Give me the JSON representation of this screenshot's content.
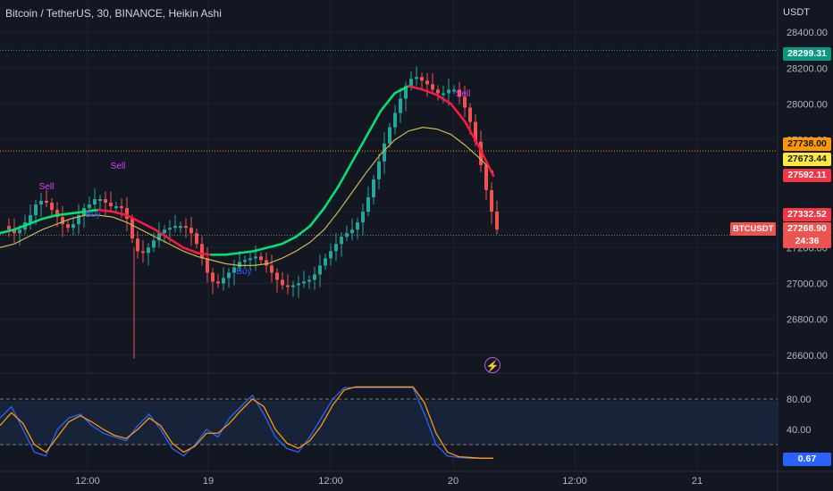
{
  "header": {
    "title": "Bitcoin / TetherUS, 30, BINANCE, Heikin Ashi",
    "currency": "USDT"
  },
  "price_tags": [
    {
      "label": "28299.31",
      "bg": "#089981",
      "fg": "#ffffff",
      "value": 28299.31
    },
    {
      "label": "27738.00",
      "bg": "#ff9800",
      "fg": "#131722",
      "value": 27738.0
    },
    {
      "label": "27673.44",
      "bg": "#ffeb3b",
      "fg": "#131722",
      "value": 27673.44
    },
    {
      "label": "27592.11",
      "bg": "#f23645",
      "fg": "#ffffff",
      "value": 27592.11
    },
    {
      "label": "27332.52",
      "bg": "#f23645",
      "fg": "#ffffff",
      "value": 27332.52
    },
    {
      "label": "27268.90",
      "bg": "#ef5350",
      "fg": "#ffffff",
      "value": 27268.9
    },
    {
      "label": "24:36",
      "bg": "#ef5350",
      "fg": "#ffffff",
      "value": 27268.9
    }
  ],
  "ticker_tag": "BTCUSDT",
  "osc_value_tag": {
    "label": "0.67",
    "bg": "#2962ff",
    "fg": "#ffffff"
  },
  "chart_data": [
    {
      "type": "candlestick",
      "title": "Bitcoin / TetherUS, 30, BINANCE, Heikin Ashi",
      "y_ticks": [
        "28400.00",
        "28200.00",
        "28000.00",
        "27800.00",
        "27400.00",
        "27200.00",
        "27000.00",
        "26800.00",
        "26600.00"
      ],
      "x_ticks": [
        "12:00",
        "19",
        "12:00",
        "20",
        "12:00",
        "21"
      ],
      "ylim": [
        26500,
        28480
      ],
      "horizontal_levels": [
        28299.31,
        27738.0,
        27268.9
      ],
      "colors": {
        "up": "#26a69a",
        "down": "#ef5350"
      },
      "signals": [
        {
          "label": "Sell",
          "color": "#e040fb",
          "kind": "sell"
        },
        {
          "label": "Sell",
          "color": "#e040fb",
          "kind": "sell"
        },
        {
          "label": "Sell",
          "color": "#e040fb",
          "kind": "sell"
        },
        {
          "label": "Buy",
          "color": "#2962ff",
          "kind": "buy"
        },
        {
          "label": "Buy",
          "color": "#2962ff",
          "kind": "buy"
        }
      ],
      "close_path": [
        [
          0,
          27320
        ],
        [
          6,
          27300
        ],
        [
          12,
          27280
        ],
        [
          18,
          27300
        ],
        [
          24,
          27340
        ],
        [
          30,
          27380
        ],
        [
          36,
          27440
        ],
        [
          42,
          27460
        ],
        [
          48,
          27450
        ],
        [
          54,
          27410
        ],
        [
          60,
          27370
        ],
        [
          66,
          27330
        ],
        [
          72,
          27310
        ],
        [
          78,
          27330
        ],
        [
          84,
          27380
        ],
        [
          90,
          27420
        ],
        [
          96,
          27440
        ],
        [
          102,
          27470
        ],
        [
          108,
          27470
        ],
        [
          114,
          27450
        ],
        [
          120,
          27430
        ],
        [
          126,
          27430
        ],
        [
          132,
          27420
        ],
        [
          138,
          27360
        ],
        [
          144,
          27250
        ],
        [
          150,
          27180
        ],
        [
          156,
          27170
        ],
        [
          162,
          27200
        ],
        [
          168,
          27240
        ],
        [
          174,
          27280
        ],
        [
          180,
          27300
        ],
        [
          186,
          27310
        ],
        [
          192,
          27320
        ],
        [
          198,
          27320
        ],
        [
          204,
          27310
        ],
        [
          210,
          27280
        ],
        [
          216,
          27220
        ],
        [
          222,
          27140
        ],
        [
          228,
          27060
        ],
        [
          234,
          27010
        ],
        [
          240,
          27000
        ],
        [
          246,
          27030
        ],
        [
          252,
          27060
        ],
        [
          258,
          27090
        ],
        [
          264,
          27120
        ],
        [
          270,
          27130
        ],
        [
          276,
          27140
        ],
        [
          282,
          27150
        ],
        [
          288,
          27130
        ],
        [
          294,
          27100
        ],
        [
          300,
          27060
        ],
        [
          306,
          27020
        ],
        [
          312,
          26990
        ],
        [
          318,
          26980
        ],
        [
          324,
          26990
        ],
        [
          330,
          27000
        ],
        [
          336,
          27010
        ],
        [
          342,
          27020
        ],
        [
          348,
          27050
        ],
        [
          354,
          27100
        ],
        [
          360,
          27140
        ],
        [
          366,
          27180
        ],
        [
          372,
          27220
        ],
        [
          378,
          27260
        ],
        [
          384,
          27280
        ],
        [
          390,
          27300
        ],
        [
          396,
          27340
        ],
        [
          402,
          27400
        ],
        [
          408,
          27480
        ],
        [
          414,
          27580
        ],
        [
          420,
          27680
        ],
        [
          426,
          27780
        ],
        [
          432,
          27870
        ],
        [
          438,
          27950
        ],
        [
          444,
          28030
        ],
        [
          450,
          28100
        ],
        [
          456,
          28140
        ],
        [
          462,
          28150
        ],
        [
          468,
          28130
        ],
        [
          474,
          28110
        ],
        [
          480,
          28080
        ],
        [
          486,
          28060
        ],
        [
          492,
          28060
        ],
        [
          498,
          28080
        ],
        [
          504,
          28080
        ],
        [
          510,
          28040
        ],
        [
          516,
          27980
        ],
        [
          522,
          27900
        ],
        [
          528,
          27790
        ],
        [
          534,
          27660
        ],
        [
          540,
          27520
        ],
        [
          546,
          27400
        ],
        [
          552,
          27300
        ]
      ],
      "series": [
        {
          "name": "",
          "color_up": "#00e676",
          "color_down": "#ff1744",
          "values": [
            27280,
            27300,
            27330,
            27360,
            27380,
            27390,
            27400,
            27410,
            27400,
            27380,
            27340,
            27300,
            27250,
            27200,
            27170,
            27160,
            27160,
            27170,
            27180,
            27200,
            27220,
            27260,
            27320,
            27420,
            27540,
            27680,
            27820,
            27960,
            28060,
            28100,
            28080,
            28050,
            28000,
            27900,
            27760,
            27600
          ]
        },
        {
          "name": "",
          "color": "#c9b84e",
          "values": [
            27200,
            27220,
            27260,
            27300,
            27330,
            27360,
            27380,
            27380,
            27370,
            27340,
            27300,
            27260,
            27220,
            27180,
            27150,
            27130,
            27110,
            27100,
            27100,
            27110,
            27140,
            27180,
            27230,
            27300,
            27400,
            27510,
            27620,
            27720,
            27800,
            27850,
            27870,
            27860,
            27830,
            27770,
            27700,
            27620
          ]
        }
      ]
    },
    {
      "type": "line",
      "y_ticks": [
        "80.00",
        "40.00"
      ],
      "levels": [
        80,
        20
      ],
      "ylim": [
        0,
        100
      ],
      "series": [
        {
          "name": "",
          "color": "#2962ff",
          "values": [
            55,
            70,
            40,
            10,
            5,
            40,
            55,
            60,
            45,
            35,
            30,
            25,
            45,
            60,
            40,
            15,
            5,
            20,
            40,
            30,
            55,
            70,
            85,
            60,
            30,
            15,
            10,
            30,
            55,
            80,
            95,
            95,
            95,
            95,
            95,
            95,
            95,
            60,
            20,
            5,
            3,
            2,
            2,
            2
          ]
        },
        {
          "name": "",
          "color": "#ff9800",
          "values": [
            45,
            62,
            48,
            20,
            10,
            30,
            50,
            58,
            50,
            40,
            32,
            28,
            40,
            55,
            45,
            22,
            10,
            18,
            35,
            35,
            48,
            65,
            80,
            70,
            40,
            22,
            15,
            25,
            45,
            72,
            92,
            96,
            96,
            96,
            96,
            96,
            96,
            75,
            35,
            10,
            4,
            3,
            2,
            2
          ]
        }
      ]
    }
  ]
}
